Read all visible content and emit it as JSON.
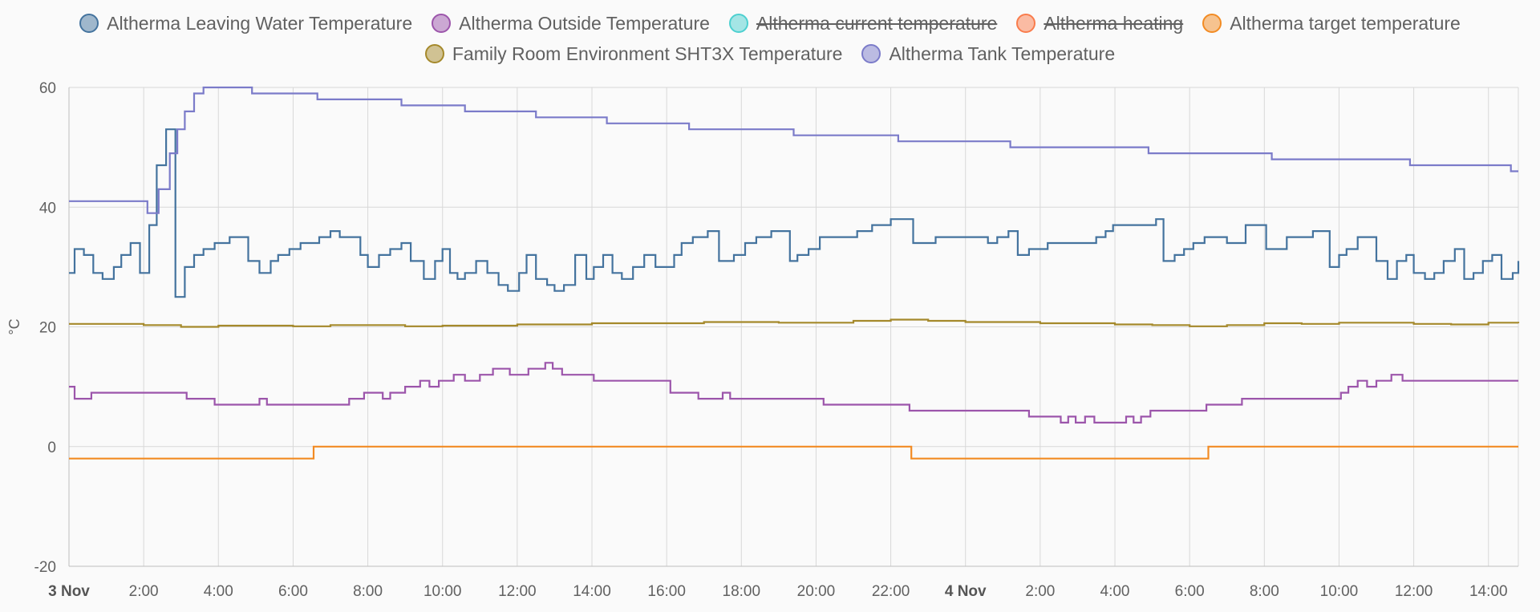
{
  "chart_data": {
    "type": "line",
    "title": "",
    "xlabel": "",
    "ylabel": "°C",
    "ylim": [
      -20,
      60
    ],
    "y_ticks": [
      -20,
      0,
      20,
      40,
      60
    ],
    "x_range_hours": [
      0,
      38.8
    ],
    "x_ticks": [
      {
        "label": "3 Nov",
        "hour": 0,
        "major": true
      },
      {
        "label": "2:00",
        "hour": 2
      },
      {
        "label": "4:00",
        "hour": 4
      },
      {
        "label": "6:00",
        "hour": 6
      },
      {
        "label": "8:00",
        "hour": 8
      },
      {
        "label": "10:00",
        "hour": 10
      },
      {
        "label": "12:00",
        "hour": 12
      },
      {
        "label": "14:00",
        "hour": 14
      },
      {
        "label": "16:00",
        "hour": 16
      },
      {
        "label": "18:00",
        "hour": 18
      },
      {
        "label": "20:00",
        "hour": 20
      },
      {
        "label": "22:00",
        "hour": 22
      },
      {
        "label": "4 Nov",
        "hour": 24,
        "major": true
      },
      {
        "label": "2:00",
        "hour": 26
      },
      {
        "label": "4:00",
        "hour": 28
      },
      {
        "label": "6:00",
        "hour": 30
      },
      {
        "label": "8:00",
        "hour": 32
      },
      {
        "label": "10:00",
        "hour": 34
      },
      {
        "label": "12:00",
        "hour": 36
      },
      {
        "label": "14:00",
        "hour": 38
      }
    ],
    "grid": true,
    "legend_position": "top-center",
    "step": true,
    "series": [
      {
        "name": "Altherma Leaving Water Temperature",
        "color": "#44739e",
        "hidden": false,
        "points": [
          [
            0,
            29
          ],
          [
            0.15,
            33
          ],
          [
            0.4,
            32
          ],
          [
            0.65,
            29
          ],
          [
            0.9,
            28
          ],
          [
            1.2,
            30
          ],
          [
            1.4,
            32
          ],
          [
            1.65,
            34
          ],
          [
            1.9,
            29
          ],
          [
            2.15,
            37
          ],
          [
            2.35,
            47
          ],
          [
            2.6,
            53
          ],
          [
            2.85,
            25
          ],
          [
            3.1,
            30
          ],
          [
            3.35,
            32
          ],
          [
            3.6,
            33
          ],
          [
            3.9,
            34
          ],
          [
            4.3,
            35
          ],
          [
            4.8,
            31
          ],
          [
            5.1,
            29
          ],
          [
            5.4,
            31
          ],
          [
            5.6,
            32
          ],
          [
            5.9,
            33
          ],
          [
            6.2,
            34
          ],
          [
            6.7,
            35
          ],
          [
            7.0,
            36
          ],
          [
            7.25,
            35
          ],
          [
            7.8,
            32
          ],
          [
            8.0,
            30
          ],
          [
            8.3,
            32
          ],
          [
            8.6,
            33
          ],
          [
            8.9,
            34
          ],
          [
            9.15,
            31
          ],
          [
            9.5,
            28
          ],
          [
            9.8,
            31
          ],
          [
            10.0,
            33
          ],
          [
            10.2,
            29
          ],
          [
            10.4,
            28
          ],
          [
            10.6,
            29
          ],
          [
            10.9,
            31
          ],
          [
            11.2,
            29
          ],
          [
            11.5,
            27
          ],
          [
            11.75,
            26
          ],
          [
            12.05,
            29
          ],
          [
            12.25,
            32
          ],
          [
            12.5,
            28
          ],
          [
            12.8,
            27
          ],
          [
            13.0,
            26
          ],
          [
            13.25,
            27
          ],
          [
            13.55,
            32
          ],
          [
            13.85,
            28
          ],
          [
            14.05,
            30
          ],
          [
            14.3,
            32
          ],
          [
            14.55,
            29
          ],
          [
            14.8,
            28
          ],
          [
            15.1,
            30
          ],
          [
            15.4,
            32
          ],
          [
            15.7,
            30
          ],
          [
            16.2,
            32
          ],
          [
            16.4,
            34
          ],
          [
            16.7,
            35
          ],
          [
            17.1,
            36
          ],
          [
            17.4,
            31
          ],
          [
            17.8,
            32
          ],
          [
            18.1,
            34
          ],
          [
            18.4,
            35
          ],
          [
            18.8,
            36
          ],
          [
            19.3,
            31
          ],
          [
            19.5,
            32
          ],
          [
            19.8,
            33
          ],
          [
            20.1,
            35
          ],
          [
            21.1,
            36
          ],
          [
            21.5,
            37
          ],
          [
            22.0,
            38
          ],
          [
            22.6,
            34
          ],
          [
            23.2,
            35
          ],
          [
            24.6,
            34
          ],
          [
            24.85,
            35
          ],
          [
            25.15,
            36
          ],
          [
            25.4,
            32
          ],
          [
            25.7,
            33
          ],
          [
            26.2,
            34
          ],
          [
            27.5,
            35
          ],
          [
            27.75,
            36
          ],
          [
            27.95,
            37
          ],
          [
            29.1,
            38
          ],
          [
            29.3,
            31
          ],
          [
            29.6,
            32
          ],
          [
            29.85,
            33
          ],
          [
            30.1,
            34
          ],
          [
            30.4,
            35
          ],
          [
            31.0,
            34
          ],
          [
            31.5,
            37
          ],
          [
            32.05,
            33
          ],
          [
            32.6,
            35
          ],
          [
            33.3,
            36
          ],
          [
            33.75,
            30
          ],
          [
            34.0,
            32
          ],
          [
            34.2,
            33
          ],
          [
            34.5,
            35
          ],
          [
            35.0,
            31
          ],
          [
            35.3,
            28
          ],
          [
            35.55,
            31
          ],
          [
            35.8,
            32
          ],
          [
            36.0,
            29
          ],
          [
            36.3,
            28
          ],
          [
            36.55,
            29
          ],
          [
            36.8,
            31
          ],
          [
            37.1,
            33
          ],
          [
            37.35,
            28
          ],
          [
            37.6,
            29
          ],
          [
            37.85,
            31
          ],
          [
            38.1,
            32
          ],
          [
            38.35,
            28
          ],
          [
            38.65,
            29
          ],
          [
            38.8,
            31
          ]
        ]
      },
      {
        "name": "Altherma Outside Temperature",
        "color": "#9c55ab",
        "hidden": false,
        "points": [
          [
            0,
            10
          ],
          [
            0.15,
            8
          ],
          [
            0.6,
            9
          ],
          [
            3.15,
            8
          ],
          [
            3.9,
            7
          ],
          [
            5.1,
            8
          ],
          [
            5.3,
            7
          ],
          [
            7.5,
            8
          ],
          [
            7.9,
            9
          ],
          [
            8.4,
            8
          ],
          [
            8.6,
            9
          ],
          [
            9.0,
            10
          ],
          [
            9.4,
            11
          ],
          [
            9.65,
            10
          ],
          [
            9.9,
            11
          ],
          [
            10.3,
            12
          ],
          [
            10.6,
            11
          ],
          [
            11.0,
            12
          ],
          [
            11.35,
            13
          ],
          [
            11.8,
            12
          ],
          [
            12.3,
            13
          ],
          [
            12.75,
            14
          ],
          [
            12.95,
            13
          ],
          [
            13.2,
            12
          ],
          [
            14.05,
            11
          ],
          [
            16.1,
            9
          ],
          [
            16.85,
            8
          ],
          [
            17.5,
            9
          ],
          [
            17.7,
            8
          ],
          [
            20.2,
            7
          ],
          [
            22.5,
            6
          ],
          [
            25.7,
            5
          ],
          [
            26.55,
            4
          ],
          [
            26.75,
            5
          ],
          [
            26.95,
            4
          ],
          [
            27.2,
            5
          ],
          [
            27.45,
            4
          ],
          [
            28.3,
            5
          ],
          [
            28.5,
            4
          ],
          [
            28.7,
            5
          ],
          [
            28.95,
            6
          ],
          [
            30.45,
            7
          ],
          [
            31.4,
            8
          ],
          [
            34.05,
            9
          ],
          [
            34.25,
            10
          ],
          [
            34.5,
            11
          ],
          [
            34.75,
            10
          ],
          [
            35.0,
            11
          ],
          [
            35.4,
            12
          ],
          [
            35.7,
            11
          ],
          [
            38.8,
            11
          ]
        ]
      },
      {
        "name": "Altherma current temperature",
        "color": "#4dd0d0",
        "hidden": true,
        "points": []
      },
      {
        "name": "Altherma heating",
        "color": "#f97c4c",
        "hidden": true,
        "points": []
      },
      {
        "name": "Altherma target temperature",
        "color": "#f28b23",
        "hidden": false,
        "points": [
          [
            0,
            -2
          ],
          [
            6.55,
            0
          ],
          [
            22.55,
            -2
          ],
          [
            30.5,
            0
          ],
          [
            38.8,
            0
          ]
        ]
      },
      {
        "name": "Family Room Environment SHT3X Temperature",
        "color": "#a5892b",
        "hidden": false,
        "points": [
          [
            0,
            20.5
          ],
          [
            2,
            20.3
          ],
          [
            3,
            20.0
          ],
          [
            4,
            20.2
          ],
          [
            6,
            20.1
          ],
          [
            7,
            20.3
          ],
          [
            8,
            20.3
          ],
          [
            9,
            20.1
          ],
          [
            10,
            20.2
          ],
          [
            12,
            20.4
          ],
          [
            14,
            20.6
          ],
          [
            16,
            20.6
          ],
          [
            17,
            20.8
          ],
          [
            19,
            20.7
          ],
          [
            21,
            21.0
          ],
          [
            22,
            21.2
          ],
          [
            23,
            21.0
          ],
          [
            24,
            20.8
          ],
          [
            26,
            20.6
          ],
          [
            28,
            20.4
          ],
          [
            29,
            20.3
          ],
          [
            30,
            20.1
          ],
          [
            31,
            20.3
          ],
          [
            32,
            20.6
          ],
          [
            33,
            20.5
          ],
          [
            34,
            20.7
          ],
          [
            36,
            20.5
          ],
          [
            37,
            20.4
          ],
          [
            38,
            20.7
          ],
          [
            38.8,
            20.6
          ]
        ]
      },
      {
        "name": "Altherma Tank Temperature",
        "color": "#7b7bc9",
        "hidden": false,
        "points": [
          [
            0,
            41
          ],
          [
            2.1,
            39
          ],
          [
            2.4,
            43
          ],
          [
            2.7,
            49
          ],
          [
            2.9,
            53
          ],
          [
            3.1,
            56
          ],
          [
            3.35,
            59
          ],
          [
            3.6,
            60
          ],
          [
            4.9,
            59
          ],
          [
            6.65,
            58
          ],
          [
            8.9,
            57
          ],
          [
            10.6,
            56
          ],
          [
            12.5,
            55
          ],
          [
            14.4,
            54
          ],
          [
            16.6,
            53
          ],
          [
            19.4,
            52
          ],
          [
            22.2,
            51
          ],
          [
            25.2,
            50
          ],
          [
            28.9,
            49
          ],
          [
            32.2,
            48
          ],
          [
            35.9,
            47
          ],
          [
            38.6,
            46
          ],
          [
            38.8,
            46
          ]
        ]
      }
    ]
  }
}
